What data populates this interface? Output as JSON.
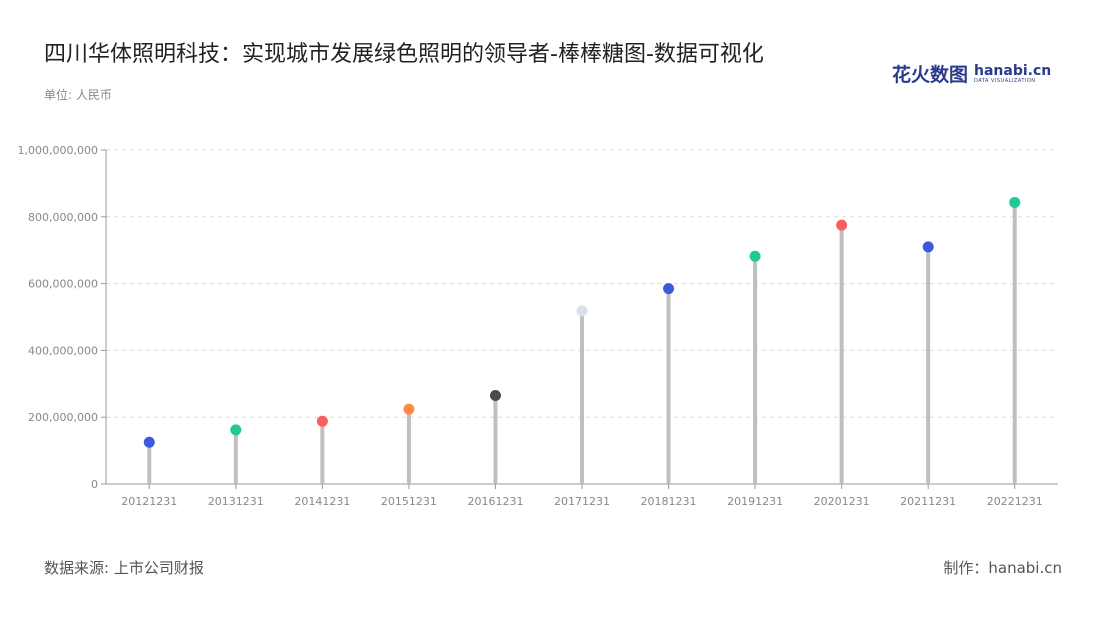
{
  "header": {
    "title": "四川华体照明科技：实现城市发展绿色照明的领导者-棒棒糖图-数据可视化",
    "unit": "单位: 人民币"
  },
  "logo": {
    "main": "花火数图",
    "brand": "hanabi.cn",
    "sub": "DATA VISUALIZATION"
  },
  "footer": {
    "source": "数据来源: 上市公司财报",
    "credit": "制作：hanabi.cn"
  },
  "chart_data": {
    "type": "lollipop",
    "title": "四川华体照明科技：实现城市发展绿色照明的领导者-棒棒糖图-数据可视化",
    "ylabel": "单位: 人民币",
    "ylim": [
      0,
      1000000000
    ],
    "yticks": [
      0,
      200000000,
      400000000,
      600000000,
      800000000,
      1000000000
    ],
    "ytick_labels": [
      "0",
      "200,000,000",
      "400,000,000",
      "600,000,000",
      "800,000,000",
      "1,000,000,000"
    ],
    "grid": true,
    "categories": [
      "20121231",
      "20131231",
      "20141231",
      "20151231",
      "20161231",
      "20171231",
      "20181231",
      "20191231",
      "20201231",
      "20211231",
      "20221231"
    ],
    "values": [
      125000000,
      162000000,
      188000000,
      224000000,
      265000000,
      518000000,
      585000000,
      682000000,
      775000000,
      710000000,
      843000000
    ],
    "colors": [
      "#3b5bdb",
      "#20c997",
      "#fa5f5f",
      "#ff8c42",
      "#4a4a4a",
      "#d8e0ea",
      "#3b5bdb",
      "#20c997",
      "#fa5f5f",
      "#3b5bdb",
      "#20c997"
    ],
    "stem_color": "#bfbfbf"
  }
}
